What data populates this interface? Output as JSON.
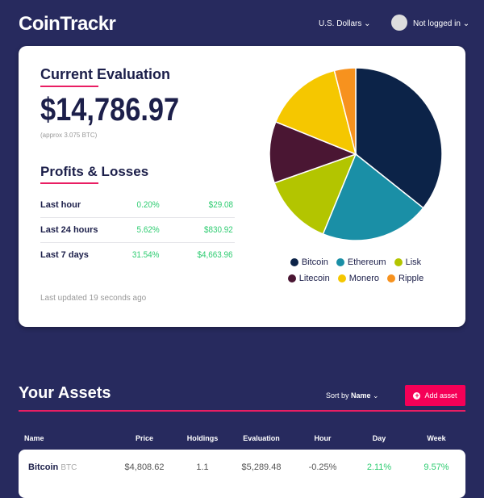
{
  "header": {
    "logo": "CoinTrackr",
    "currency": "U.S. Dollars",
    "user": "Not logged in"
  },
  "evaluation": {
    "title": "Current Evaluation",
    "amount": "$14,786.97",
    "approx": "(approx 3.075 BTC)"
  },
  "profits": {
    "title": "Profits & Losses",
    "rows": [
      [
        "Last hour",
        "0.20%",
        "$29.08"
      ],
      [
        "Last 24 hours",
        "5.62%",
        "$830.92"
      ],
      [
        "Last 7 days",
        "31.54%",
        "$4,663.96"
      ]
    ]
  },
  "updated": "Last updated 19 seconds ago",
  "chart_data": {
    "type": "pie",
    "categories": [
      "Bitcoin",
      "Ethereum",
      "Lisk",
      "Litecoin",
      "Monero",
      "Ripple"
    ],
    "values": [
      35.7,
      20.5,
      13.4,
      11.5,
      14.9,
      4.0
    ],
    "colors": [
      "#0c2348",
      "#1a8fa6",
      "#b3c500",
      "#4a1633",
      "#f5c700",
      "#f7921e"
    ]
  },
  "assets": {
    "title": "Your Assets",
    "sort_label": "Sort by",
    "sort_value": "Name",
    "add_button": "Add asset",
    "columns": [
      "Name",
      "Price",
      "Holdings",
      "Evaluation",
      "Hour",
      "Day",
      "Week"
    ],
    "rows": [
      [
        "Bitcoin",
        "BTC",
        "$4,808.62",
        "1.1",
        "$5,289.48",
        "-0.25%",
        "2.11%",
        "9.57%"
      ]
    ]
  }
}
